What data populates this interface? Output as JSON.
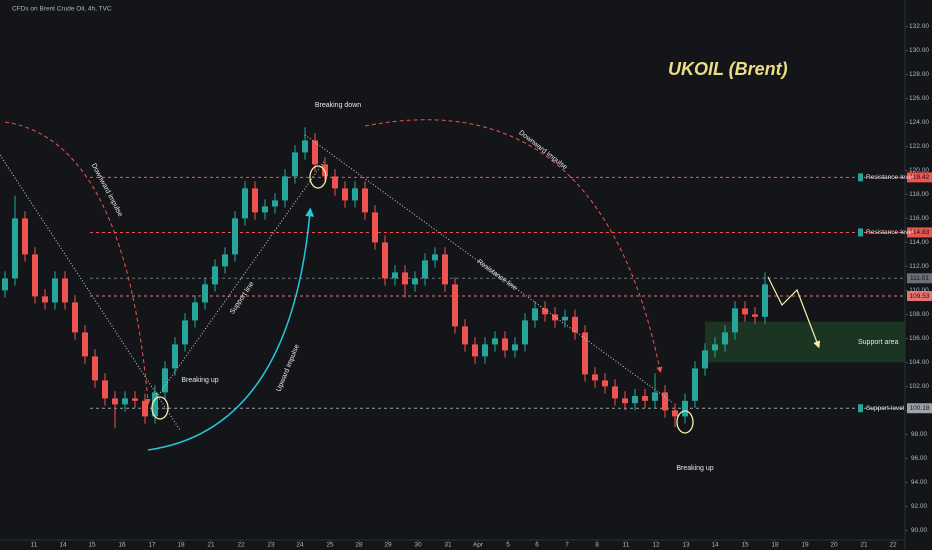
{
  "header": "CFDs on Brent Crude Oil, 4h, TVC",
  "chart_data": {
    "type": "candlestick",
    "title": "UKOIL (Brent)",
    "up_color": "#26a69a",
    "down_color": "#ef5350",
    "x": [
      0,
      1,
      2,
      3,
      4,
      5,
      6,
      7,
      8,
      9,
      10,
      11,
      12,
      13,
      14,
      15,
      16,
      17,
      18,
      19,
      20,
      21,
      22,
      23,
      24,
      25,
      26,
      27,
      28,
      29,
      30,
      31,
      32,
      33,
      34,
      35,
      36,
      37,
      38,
      39,
      40,
      41,
      42,
      43,
      44,
      45,
      46,
      47,
      48,
      49,
      50,
      51,
      52,
      53,
      54,
      55,
      56,
      57,
      58,
      59,
      60,
      61,
      62,
      63,
      64,
      65,
      66,
      67,
      68,
      69,
      70,
      71,
      72,
      73,
      74,
      75,
      76
    ],
    "open": [
      110,
      111,
      116,
      113,
      109.5,
      109,
      111,
      109,
      106.5,
      104.5,
      102.5,
      101,
      100.5,
      101,
      100.8,
      99.5,
      101.5,
      103.5,
      105.5,
      107.5,
      109,
      110.5,
      112,
      113,
      116,
      118.5,
      116.5,
      117,
      117.5,
      119.5,
      121.5,
      122.5,
      120.5,
      119.5,
      118.5,
      117.5,
      118.5,
      116.5,
      114,
      111,
      111.5,
      110.5,
      111,
      112.5,
      113,
      110.5,
      107,
      105.5,
      104.5,
      105.5,
      106,
      105,
      105.5,
      107.5,
      108.5,
      108,
      107.5,
      107.8,
      106.5,
      103,
      102.5,
      102,
      101,
      100.6,
      101.2,
      100.8,
      101.5,
      100,
      99.5,
      100.8,
      103.5,
      105,
      105.5,
      106.5,
      108.5,
      108,
      107.8
    ],
    "high": [
      111.6,
      117.9,
      116.6,
      113.6,
      110.1,
      111.6,
      111.6,
      109.6,
      107.1,
      105.1,
      103.1,
      101.6,
      101.6,
      101.6,
      101.4,
      102.1,
      104.1,
      106.1,
      108.1,
      109.6,
      111.1,
      112.6,
      113.6,
      116.6,
      119.1,
      119.1,
      117.6,
      118.1,
      120.1,
      122.1,
      123.6,
      123.1,
      121.1,
      120.1,
      119.1,
      119.1,
      119.1,
      117.1,
      114.6,
      112.1,
      112.1,
      111.6,
      113.1,
      113.6,
      113.6,
      111.1,
      107.6,
      106.1,
      106.1,
      106.6,
      106.6,
      106.1,
      108.1,
      109.1,
      109.1,
      108.6,
      108.4,
      108.4,
      107.1,
      103.6,
      103.1,
      102.6,
      101.6,
      101.8,
      101.8,
      103.1,
      102.1,
      100.6,
      101.4,
      104.1,
      105.6,
      106.1,
      107.1,
      109.1,
      109.1,
      108.6,
      111.5
    ],
    "low": [
      109.4,
      110.4,
      112.4,
      108.9,
      108.4,
      108.4,
      108.4,
      105.9,
      103.9,
      101.9,
      100.4,
      98.5,
      99.9,
      100.2,
      98.9,
      98.9,
      100.9,
      102.9,
      104.9,
      106.9,
      108.4,
      109.9,
      111.4,
      112.4,
      115.4,
      115.9,
      115.9,
      116.4,
      116.9,
      118.9,
      120.9,
      119.9,
      118.9,
      117.9,
      116.9,
      116.9,
      115.9,
      113.4,
      110.4,
      110.4,
      109.4,
      109.9,
      110.4,
      111.9,
      109.9,
      106.4,
      104.9,
      103.9,
      103.9,
      104.9,
      104.4,
      104.4,
      104.9,
      106.9,
      107.4,
      106.9,
      106.9,
      105.9,
      102.4,
      101.9,
      101.4,
      100.4,
      100,
      100,
      100.2,
      100.2,
      99.4,
      98.6,
      98.9,
      100.2,
      102.9,
      104.4,
      104.9,
      105.9,
      107.4,
      107.2,
      107.2
    ],
    "close": [
      111,
      116,
      113,
      109.5,
      109,
      111,
      109,
      106.5,
      104.5,
      102.5,
      101,
      100.5,
      101,
      100.8,
      99.5,
      101.5,
      103.5,
      105.5,
      107.5,
      109,
      110.5,
      112,
      113,
      116,
      118.5,
      116.5,
      117,
      117.5,
      119.5,
      121.5,
      122.5,
      120.5,
      119.5,
      118.5,
      117.5,
      118.5,
      116.5,
      114,
      111,
      111.5,
      110.5,
      111,
      112.5,
      113,
      110.5,
      107,
      105.5,
      104.5,
      105.5,
      106,
      105,
      105.5,
      107.5,
      108.5,
      108,
      107.5,
      107.8,
      106.5,
      103,
      102.5,
      102,
      101,
      100.6,
      101.2,
      100.8,
      101.5,
      100,
      99.5,
      100.8,
      103.5,
      105,
      105.5,
      106.5,
      108.5,
      108,
      107.8,
      110.5
    ],
    "xlim": [
      -0.5,
      90
    ],
    "xticks": [
      {
        "value": 2.9,
        "label": "11"
      },
      {
        "value": 5.8,
        "label": "14"
      },
      {
        "value": 8.7,
        "label": "15"
      },
      {
        "value": 11.7,
        "label": "16"
      },
      {
        "value": 14.7,
        "label": "17"
      },
      {
        "value": 17.6,
        "label": "18"
      },
      {
        "value": 20.6,
        "label": "21"
      },
      {
        "value": 23.6,
        "label": "22"
      },
      {
        "value": 26.6,
        "label": "23"
      },
      {
        "value": 29.5,
        "label": "24"
      },
      {
        "value": 32.5,
        "label": "25"
      },
      {
        "value": 35.4,
        "label": "28"
      },
      {
        "value": 38.3,
        "label": "29"
      },
      {
        "value": 41.3,
        "label": "30"
      },
      {
        "value": 44.3,
        "label": "31"
      },
      {
        "value": 47.3,
        "label": "Apr"
      },
      {
        "value": 50.3,
        "label": "5"
      },
      {
        "value": 53.2,
        "label": "6"
      },
      {
        "value": 56.2,
        "label": "7"
      },
      {
        "value": 59.2,
        "label": "8"
      },
      {
        "value": 62.1,
        "label": "11"
      },
      {
        "value": 65.1,
        "label": "12"
      },
      {
        "value": 68.1,
        "label": "13"
      },
      {
        "value": 71.0,
        "label": "14"
      },
      {
        "value": 74.0,
        "label": "15"
      },
      {
        "value": 77.0,
        "label": "18"
      },
      {
        "value": 80.0,
        "label": "19"
      },
      {
        "value": 82.9,
        "label": "20"
      },
      {
        "value": 85.9,
        "label": "21"
      },
      {
        "value": 88.8,
        "label": "22"
      }
    ],
    "ylim": [
      89.2,
      134.2
    ],
    "yticks": [
      {
        "value": 90,
        "label": "90.00"
      },
      {
        "value": 92,
        "label": "92.00"
      },
      {
        "value": 94,
        "label": "94.00"
      },
      {
        "value": 96,
        "label": "96.00"
      },
      {
        "value": 98,
        "label": "98.00"
      },
      {
        "value": 100,
        "label": "100.00"
      },
      {
        "value": 102,
        "label": "102.00"
      },
      {
        "value": 104,
        "label": "104.00"
      },
      {
        "value": 106,
        "label": "106.00"
      },
      {
        "value": 108,
        "label": "108.00"
      },
      {
        "value": 110,
        "label": "110.00"
      },
      {
        "value": 112,
        "label": "112.00"
      },
      {
        "value": 114,
        "label": "114.00"
      },
      {
        "value": 116,
        "label": "116.00"
      },
      {
        "value": 118,
        "label": "118.00"
      },
      {
        "value": 120,
        "label": "120.00"
      },
      {
        "value": 122,
        "label": "122.00"
      },
      {
        "value": 124,
        "label": "124.00"
      },
      {
        "value": 126,
        "label": "126.00"
      },
      {
        "value": 128,
        "label": "128.00"
      },
      {
        "value": 130,
        "label": "130.00"
      },
      {
        "value": 132,
        "label": "132.00"
      }
    ],
    "levels": [
      {
        "value": 119.42,
        "name": "Resistance-level",
        "color": "#ef5350"
      },
      {
        "value": 114.83,
        "name": "Resistance-level",
        "color": "#ef5350"
      },
      {
        "value": 111.01,
        "color": "#6b6f78"
      },
      {
        "value": 109.53,
        "color": "#e57373"
      },
      {
        "value": 100.18,
        "name": "Support-level",
        "color": "#9aa0a6"
      }
    ],
    "support_area": {
      "low": 104,
      "high": 107.4,
      "label": "Support area"
    },
    "annotations": {
      "breaking_down": "Breaking down",
      "breaking_up_1": "Breaking up",
      "breaking_up_2": "Breaking up",
      "downward_1": "Downward impulse",
      "downward_2": "Downward impulse",
      "upward": "Upward impulse",
      "support_line": "Support line",
      "resistance_line": "Resistance line"
    }
  }
}
